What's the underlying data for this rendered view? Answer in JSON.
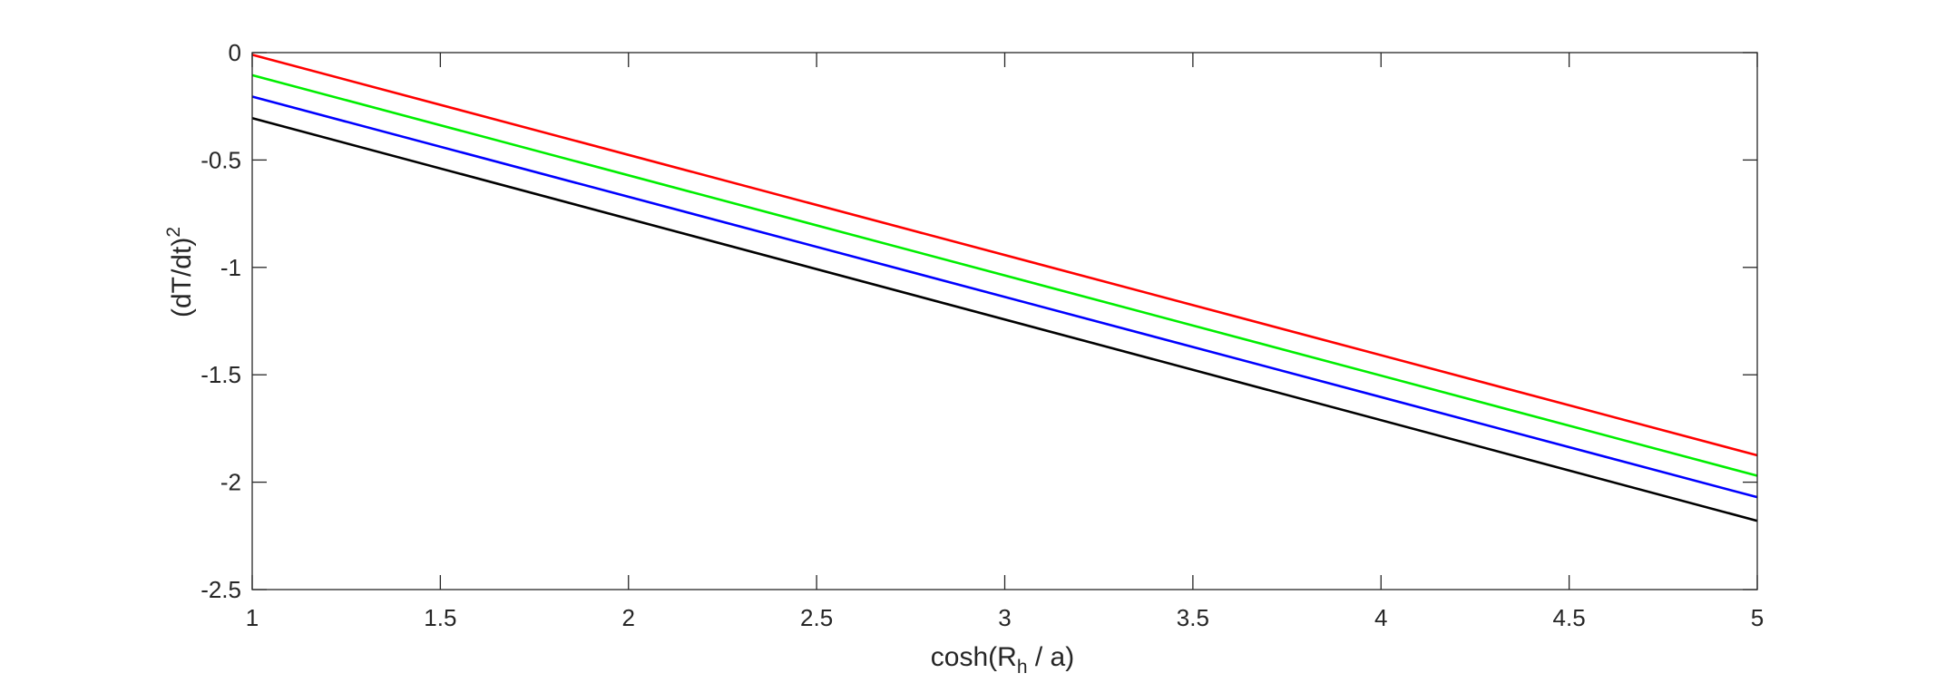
{
  "chart_data": {
    "type": "line",
    "xlabel_parts": {
      "before": "cosh(R",
      "subscript": "h",
      "after": " / a)"
    },
    "ylabel_parts": {
      "base": "(dT/dt)",
      "superscript": "2"
    },
    "xlim": [
      1,
      5
    ],
    "ylim": [
      -2.5,
      0
    ],
    "x_ticks": [
      1,
      1.5,
      2,
      2.5,
      3,
      3.5,
      4,
      4.5,
      5
    ],
    "x_tick_labels": [
      "1",
      "1.5",
      "2",
      "2.5",
      "3",
      "3.5",
      "4",
      "4.5",
      "5"
    ],
    "y_ticks": [
      0,
      -0.5,
      -1,
      -1.5,
      -2,
      -2.5
    ],
    "y_tick_labels": [
      "0",
      "-0.5",
      "-1",
      "-1.5",
      "-2",
      "-2.5"
    ],
    "grid": false,
    "series": [
      {
        "color": "#ff0000",
        "x": [
          1,
          5
        ],
        "y": [
          -0.01,
          -1.875
        ]
      },
      {
        "color": "#00ee00",
        "x": [
          1,
          5
        ],
        "y": [
          -0.105,
          -1.97
        ]
      },
      {
        "color": "#0000ff",
        "x": [
          1,
          5
        ],
        "y": [
          -0.205,
          -2.07
        ]
      },
      {
        "color": "#000000",
        "x": [
          1,
          5
        ],
        "y": [
          -0.305,
          -2.18
        ]
      }
    ]
  }
}
